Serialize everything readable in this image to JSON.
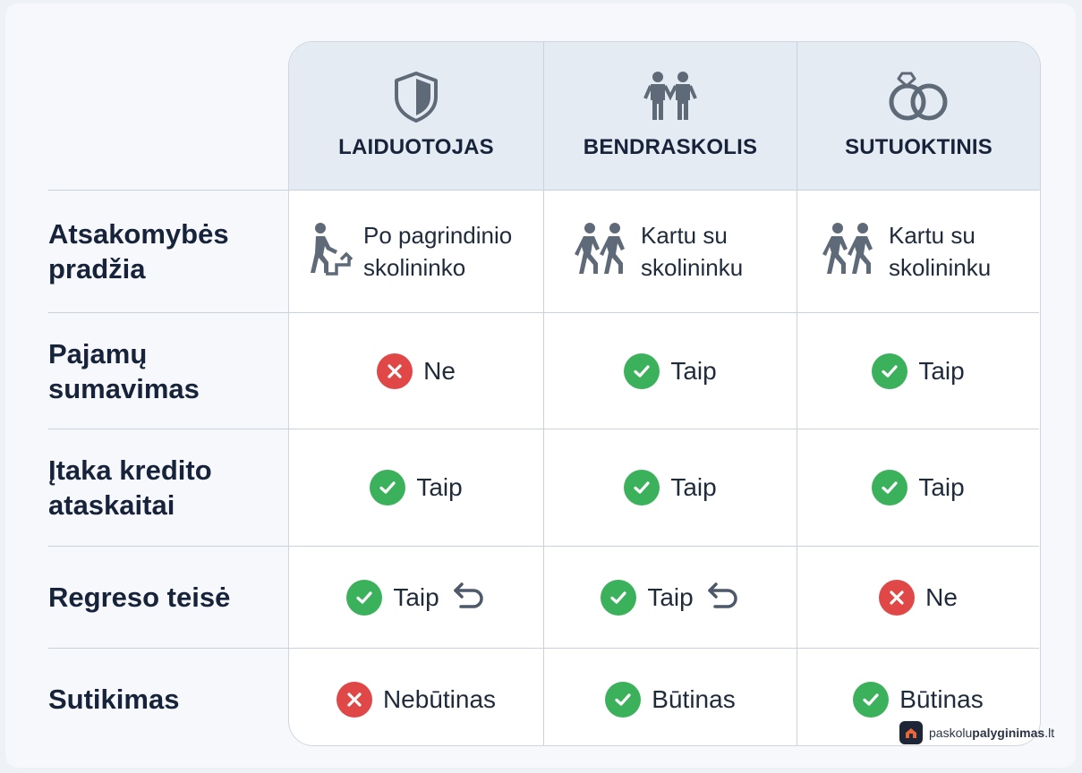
{
  "columns": [
    {
      "title": "LAIDUOTOJAS",
      "icon": "shield-icon"
    },
    {
      "title": "BENDRASKOLIS",
      "icon": "two-people-holding-hands-icon"
    },
    {
      "title": "SUTUOKTINIS",
      "icon": "wedding-rings-icon"
    }
  ],
  "rows": [
    {
      "label": "Atsakomybės pradžia",
      "cells": [
        {
          "text": "Po pagrindinio skolininko",
          "icon": "person-stairs-icon"
        },
        {
          "text": "Kartu su skolininku",
          "icon": "two-people-walking-icon"
        },
        {
          "text": "Kartu su skolininku",
          "icon": "two-people-walking-icon"
        }
      ]
    },
    {
      "label": "Pajamų sumavimas",
      "cells": [
        {
          "text": "Ne",
          "status": "no"
        },
        {
          "text": "Taip",
          "status": "yes"
        },
        {
          "text": "Taip",
          "status": "yes"
        }
      ]
    },
    {
      "label": "Įtaka kredito ataskaitai",
      "cells": [
        {
          "text": "Taip",
          "status": "yes"
        },
        {
          "text": "Taip",
          "status": "yes"
        },
        {
          "text": "Taip",
          "status": "yes"
        }
      ]
    },
    {
      "label": "Regreso teisė",
      "cells": [
        {
          "text": "Taip",
          "status": "yes",
          "extra_icon": "return-arrow-icon"
        },
        {
          "text": "Taip",
          "status": "yes",
          "extra_icon": "return-arrow-icon"
        },
        {
          "text": "Ne",
          "status": "no"
        }
      ]
    },
    {
      "label": "Sutikimas",
      "cells": [
        {
          "text": "Nebūtinas",
          "status": "no"
        },
        {
          "text": "Būtinas",
          "status": "yes"
        },
        {
          "text": "Būtinas",
          "status": "yes"
        }
      ]
    }
  ],
  "brand": {
    "prefix": "paskolu",
    "bold": "palyginimas",
    "suffix": ".lt",
    "icon": "house-logo-icon"
  },
  "colors": {
    "yes": "#3cb15b",
    "no": "#e04848",
    "header_bg": "#e5ebf3",
    "text": "#17233a",
    "icon_gray": "#5f6a78"
  }
}
